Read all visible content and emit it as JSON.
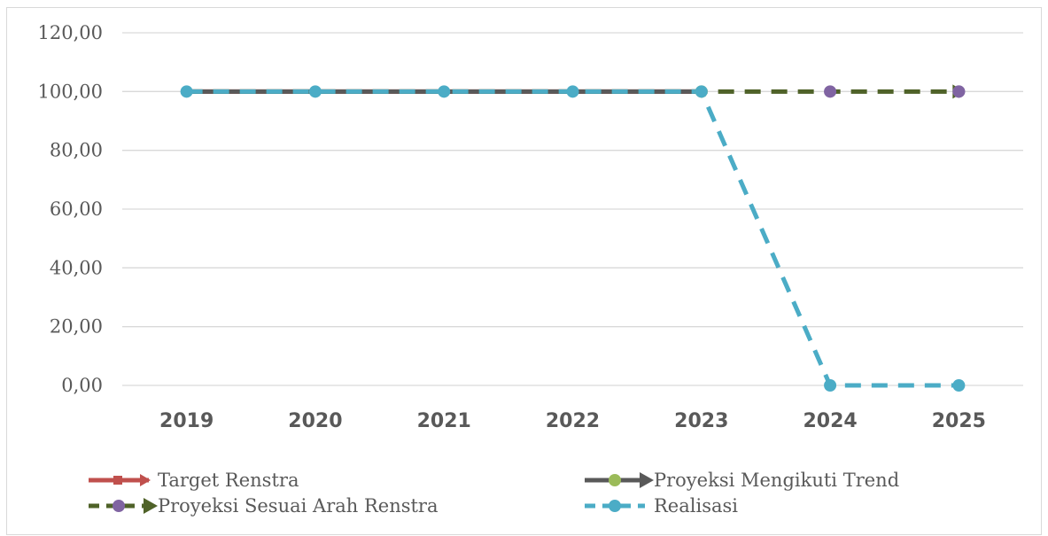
{
  "chart_data": {
    "type": "line",
    "categories": [
      "2019",
      "2020",
      "2021",
      "2022",
      "2023",
      "2024",
      "2025"
    ],
    "ylim": [
      0,
      120
    ],
    "yticks": [
      "0,00",
      "20,00",
      "40,00",
      "60,00",
      "80,00",
      "100,00",
      "120,00"
    ],
    "grid": true,
    "legend_placement": "bottom",
    "series": [
      {
        "name": "Target Renstra",
        "values": [
          100,
          100,
          100,
          100,
          100,
          null,
          null
        ],
        "color": "#c0504d",
        "dash": "solid",
        "marker": "square-arrow"
      },
      {
        "name": "Proyeksi Mengikuti Trend",
        "values": [
          100,
          100,
          100,
          100,
          100,
          null,
          null
        ],
        "color": "#595959",
        "dash": "solid",
        "marker": "circle-arrow",
        "marker_color": "#9bbb59"
      },
      {
        "name": "Proyeksi Sesuai Arah Renstra",
        "values": [
          100,
          100,
          100,
          100,
          100,
          100,
          100
        ],
        "color": "#4f6228",
        "dash": "dashed",
        "marker": "circle-arrow",
        "marker_color": "#8064a2"
      },
      {
        "name": "Realisasi",
        "values": [
          100,
          100,
          100,
          100,
          100,
          0,
          0
        ],
        "color": "#4bacc6",
        "dash": "dashed",
        "marker": "circle"
      }
    ]
  }
}
